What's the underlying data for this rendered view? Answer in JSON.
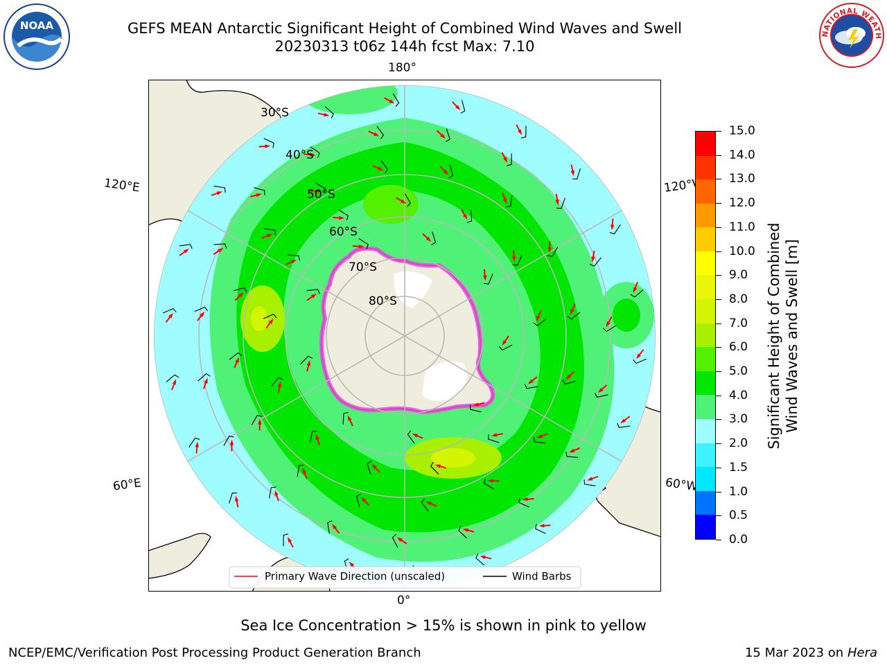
{
  "header": {
    "title_line1": "GEFS MEAN Antarctic Significant Height of Combined Wind Waves and Swell",
    "title_line2": "20230313 t06z 144h fcst   Max: 7.10"
  },
  "logos": {
    "noaa_text": "NOAA",
    "nws_text": "NATIONAL WEATHER SERVICE"
  },
  "map": {
    "projection": "south-polar-stereographic",
    "longitude_labels": [
      "180°",
      "120°E",
      "120°W",
      "60°E",
      "60°W",
      "0°"
    ],
    "latitude_labels": [
      "30°S",
      "40°S",
      "50°S",
      "60°S",
      "70°S",
      "80°S"
    ],
    "land_color": "#efedde",
    "grid_color": "#b8b8b8",
    "legend": {
      "wave_label": "Primary Wave Direction (unscaled)",
      "wave_color": "#ff0000",
      "wind_label": "Wind Barbs",
      "wind_color": "#000000"
    }
  },
  "colorbar": {
    "title_line1": "Significant Height of Combined",
    "title_line2": "Wind Waves and Swell [m]",
    "ticks": [
      "0.0",
      "0.5",
      "1.0",
      "1.5",
      "2.0",
      "3.0",
      "4.0",
      "5.0",
      "6.0",
      "7.0",
      "8.0",
      "9.0",
      "10.0",
      "11.0",
      "12.0",
      "13.0",
      "14.0",
      "15.0"
    ],
    "colors": [
      "#0000ff",
      "#0073ff",
      "#00e8ff",
      "#3ff2ff",
      "#a0fdff",
      "#4ff276",
      "#00e600",
      "#53f000",
      "#a8f000",
      "#d4f500",
      "#eaf50a",
      "#ffff00",
      "#ffcc00",
      "#ff9900",
      "#ff6600",
      "#ff3300",
      "#ff0000"
    ]
  },
  "chart_data": {
    "type": "heatmap",
    "variable": "Significant Height of Combined Wind Waves and Swell",
    "units": "m",
    "max": 7.1,
    "levels": [
      0.0,
      0.5,
      1.0,
      1.5,
      2.0,
      3.0,
      4.0,
      5.0,
      6.0,
      7.0,
      8.0,
      9.0,
      10.0,
      11.0,
      12.0,
      13.0,
      14.0,
      15.0
    ]
  },
  "footer": {
    "ice_note": "Sea Ice Concentration > 15% is shown in pink to yellow",
    "credit": "NCEP/EMC/Verification Post Processing Product Generation Branch",
    "date": "15 Mar 2023 on",
    "host": "Hera"
  }
}
